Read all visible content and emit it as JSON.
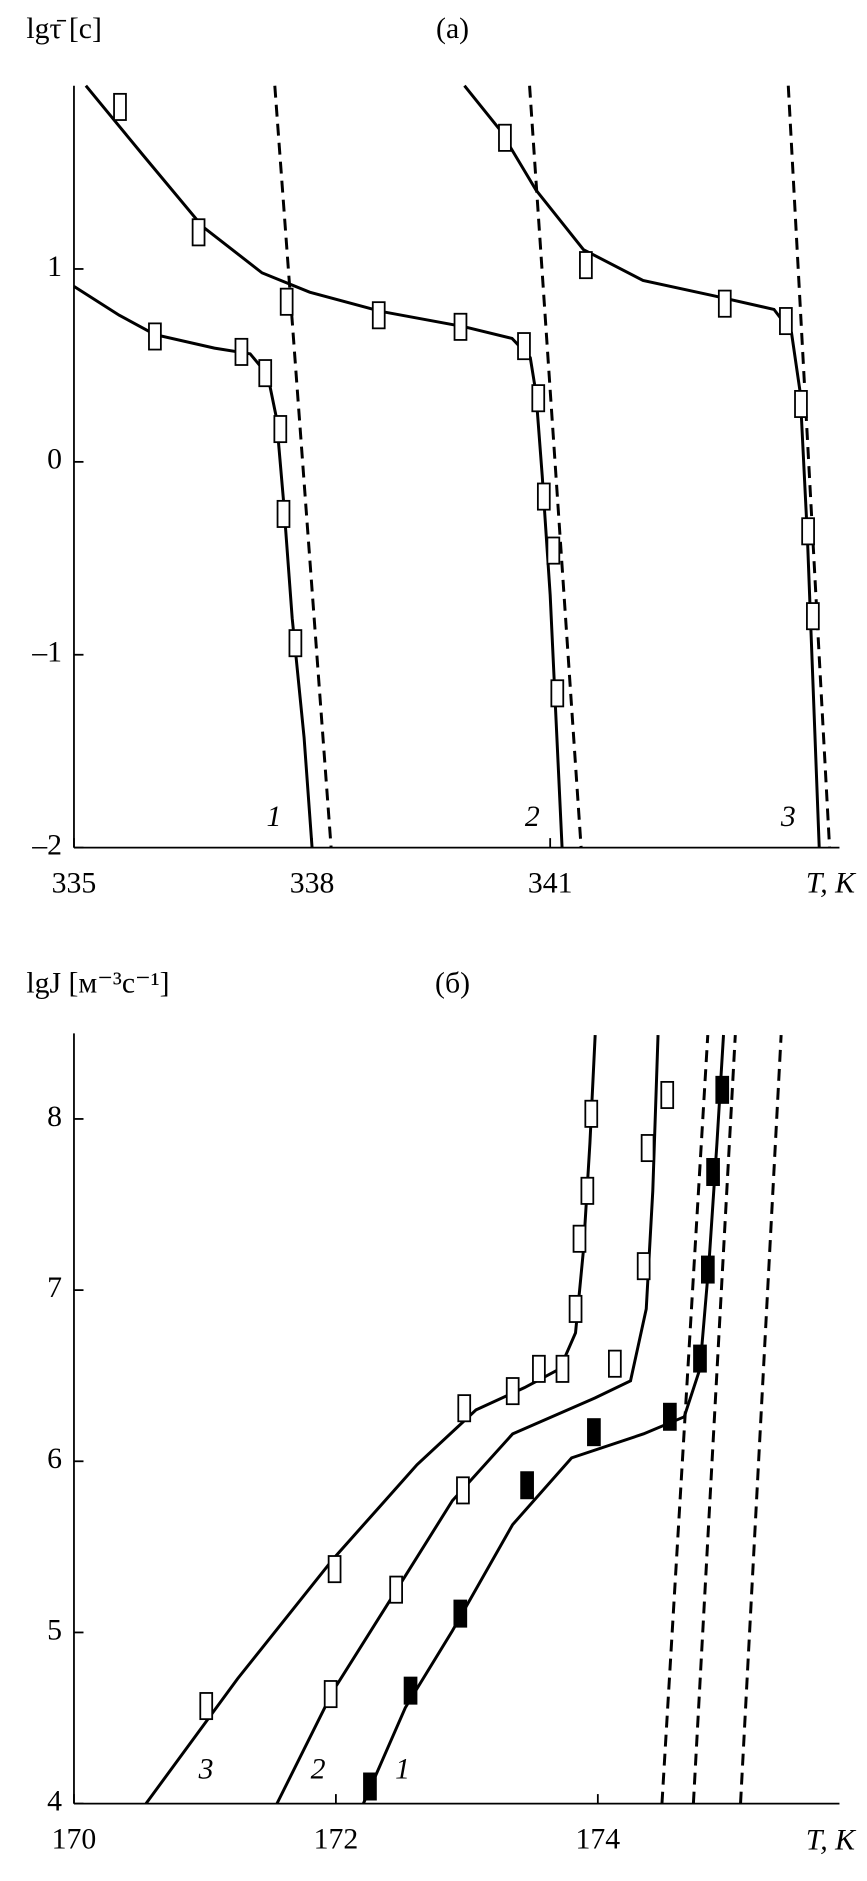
{
  "chart_data": [
    {
      "type": "line",
      "title": "(a)",
      "ylabel": "lgτ̄ [с]",
      "xlabel": "T, K",
      "color": "#000000",
      "xlim": [
        335,
        344.645
      ],
      "ylim": [
        -2,
        1.95
      ],
      "xticks": [
        335,
        338,
        341
      ],
      "yticks": [
        {
          "value": -2,
          "label": "–2"
        },
        {
          "value": -1,
          "label": "–1"
        },
        0,
        1
      ],
      "curves": [
        {
          "name": "1",
          "x": [
            335,
            335.57,
            336.02,
            336.77,
            337.22,
            337.44,
            337.55,
            337.64,
            337.75,
            337.9,
            338.0
          ],
          "values": [
            0.91,
            0.76,
            0.66,
            0.59,
            0.56,
            0.45,
            0.23,
            -0.2,
            -0.81,
            -1.43,
            -2.0
          ]
        },
        {
          "name": "2",
          "x": [
            335.15,
            335.87,
            336.62,
            337.37,
            337.97,
            338.87,
            339.92,
            340.52,
            340.75,
            340.82,
            340.9,
            341.0,
            341.15
          ],
          "values": [
            1.95,
            1.59,
            1.22,
            0.98,
            0.88,
            0.78,
            0.7,
            0.64,
            0.54,
            0.36,
            -0.07,
            -0.69,
            -2.0
          ]
        },
        {
          "name": "3",
          "x": [
            339.92,
            340.37,
            340.82,
            341.42,
            342.17,
            343.07,
            343.82,
            344.04,
            344.15,
            344.24,
            344.39
          ],
          "values": [
            1.95,
            1.72,
            1.41,
            1.1,
            0.94,
            0.86,
            0.79,
            0.67,
            0.36,
            -0.38,
            -2.0
          ]
        }
      ],
      "dashed": [
        {
          "x": [
            337.53,
            338.24
          ],
          "values": [
            1.95,
            -2
          ]
        },
        {
          "x": [
            340.74,
            341.39
          ],
          "values": [
            1.95,
            -2
          ]
        },
        {
          "x": [
            344.0,
            344.52
          ],
          "values": [
            1.95,
            -2
          ]
        }
      ],
      "points": [
        {
          "filled": false,
          "x": [
            336.02,
            337.11,
            337.41,
            337.6,
            337.64,
            337.79
          ],
          "values": [
            0.65,
            0.57,
            0.46,
            0.17,
            -0.27,
            -0.94
          ]
        },
        {
          "filled": false,
          "x": [
            335.58,
            336.57,
            337.68,
            338.84,
            339.87,
            340.67,
            340.85,
            340.92,
            341.04,
            341.09
          ],
          "values": [
            1.84,
            1.19,
            0.83,
            0.76,
            0.7,
            0.6,
            0.33,
            -0.18,
            -0.46,
            -1.2
          ]
        },
        {
          "filled": false,
          "x": [
            340.43,
            341.45,
            343.2,
            343.97,
            344.16,
            344.25,
            344.31
          ],
          "values": [
            1.68,
            1.02,
            0.82,
            0.73,
            0.3,
            -0.36,
            -0.8
          ]
        }
      ]
    },
    {
      "type": "line",
      "title": "(б)",
      "ylabel": "lgJ [м⁻³с⁻¹]",
      "xlabel": "T, K",
      "color": "#000000",
      "xlim": [
        170,
        175.845
      ],
      "ylim": [
        4,
        8.5
      ],
      "xticks": [
        170,
        172,
        174
      ],
      "yticks": [
        4,
        5,
        6,
        7,
        8
      ],
      "curves": [
        {
          "name": "1",
          "x": [
            172.21,
            172.53,
            172.89,
            173.35,
            173.8,
            174.35,
            174.66,
            174.78,
            174.85,
            174.91,
            174.96
          ],
          "values": [
            4.0,
            4.56,
            5.01,
            5.63,
            6.02,
            6.16,
            6.26,
            6.54,
            7.17,
            7.86,
            8.49
          ]
        },
        {
          "name": "2",
          "x": [
            171.55,
            171.98,
            172.44,
            172.89,
            173.35,
            173.98,
            174.25,
            174.37,
            174.42,
            174.46
          ],
          "values": [
            4.0,
            4.66,
            5.22,
            5.77,
            6.16,
            6.37,
            6.47,
            6.89,
            7.58,
            8.49
          ]
        },
        {
          "name": "3",
          "x": [
            170.55,
            171.25,
            171.98,
            172.62,
            173.07,
            173.44,
            173.71,
            173.83,
            173.89,
            173.94,
            173.98
          ],
          "values": [
            4.0,
            4.73,
            5.43,
            5.98,
            6.3,
            6.43,
            6.54,
            6.75,
            7.23,
            7.86,
            8.49
          ]
        }
      ],
      "dashed": [
        {
          "x": [
            174.49,
            174.84
          ],
          "values": [
            4,
            8.49
          ]
        },
        {
          "x": [
            174.73,
            175.05
          ],
          "values": [
            4,
            8.49
          ]
        },
        {
          "x": [
            175.09,
            175.4
          ],
          "values": [
            4,
            8.49
          ]
        }
      ],
      "points": [
        {
          "filled": true,
          "x": [
            172.26,
            172.57,
            172.95,
            173.46,
            173.97,
            174.55,
            174.78,
            174.84,
            174.88,
            174.95
          ],
          "values": [
            4.1,
            4.66,
            5.11,
            5.86,
            6.17,
            6.26,
            6.6,
            7.12,
            7.69,
            8.17
          ]
        },
        {
          "filled": false,
          "x": [
            171.96,
            172.46,
            172.97,
            174.13,
            174.35,
            174.38,
            174.53
          ],
          "values": [
            4.64,
            5.25,
            5.83,
            6.57,
            7.14,
            7.83,
            8.14
          ]
        },
        {
          "filled": false,
          "x": [
            171.01,
            171.99,
            172.98,
            173.35,
            173.55,
            173.73,
            173.83,
            173.86,
            173.92,
            173.95
          ],
          "values": [
            4.57,
            5.37,
            6.31,
            6.41,
            6.54,
            6.54,
            6.89,
            7.3,
            7.58,
            8.03
          ]
        }
      ]
    }
  ]
}
